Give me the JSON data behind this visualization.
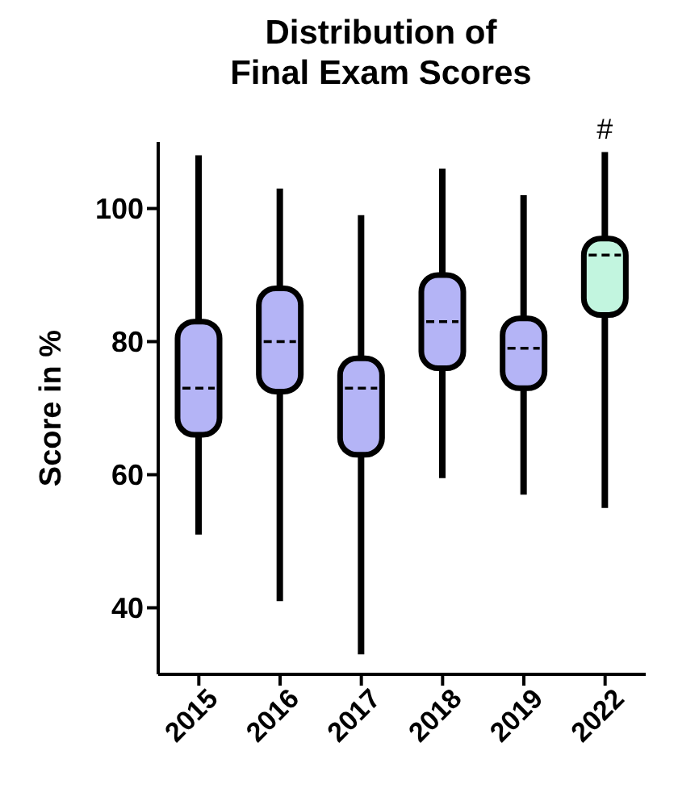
{
  "chart_data": {
    "type": "box",
    "title": "Distribution of Final Exam Scores",
    "ylabel": "Score in %",
    "categories": [
      "2015",
      "2016",
      "2017",
      "2018",
      "2019",
      "2022"
    ],
    "boxes": [
      {
        "low": 51,
        "q1": 66,
        "median": 73,
        "q3": 83,
        "high": 108
      },
      {
        "low": 41,
        "q1": 72.5,
        "median": 80,
        "q3": 88,
        "high": 103
      },
      {
        "low": 33,
        "q1": 63,
        "median": 73,
        "q3": 77.5,
        "high": 99
      },
      {
        "low": 59.5,
        "q1": 76,
        "median": 83,
        "q3": 90,
        "high": 106
      },
      {
        "low": 57,
        "q1": 73,
        "median": 79,
        "q3": 83.5,
        "high": 102
      },
      {
        "low": 55,
        "q1": 84,
        "median": 93,
        "q3": 95.5,
        "high": 108.5
      }
    ],
    "colors": [
      "#b4b4f6",
      "#b4b4f6",
      "#b4b4f6",
      "#b4b4f6",
      "#b4b4f6",
      "#c2f5df"
    ],
    "ylim": [
      30,
      110
    ],
    "yticks": [
      40,
      60,
      80,
      100
    ],
    "grid": false,
    "annotations": [
      "#"
    ]
  }
}
